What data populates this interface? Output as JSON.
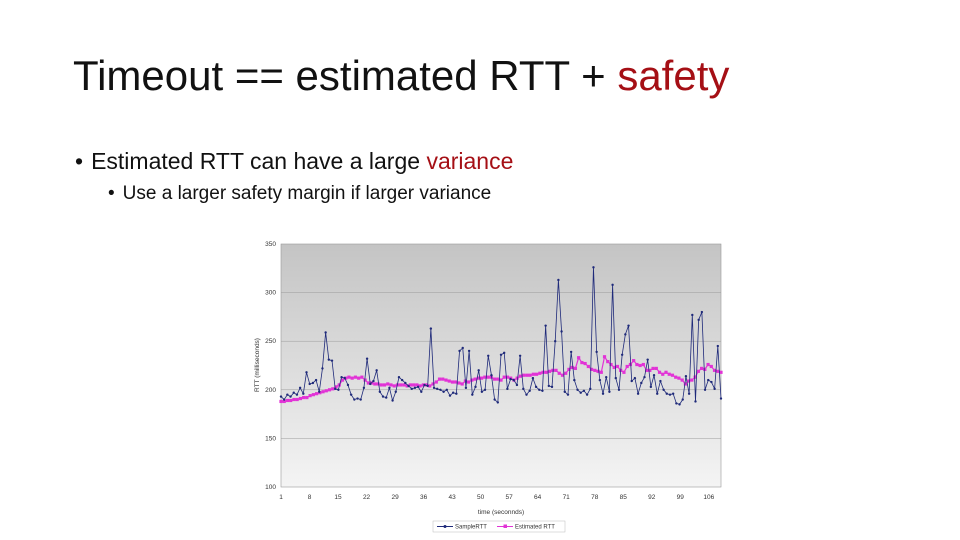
{
  "slide": {
    "title_main": "Timeout == estimated RTT + ",
    "title_accent": "safety",
    "bullet1_main": "Estimated RTT can have a large ",
    "bullet1_accent": "variance",
    "bullet2": "Use a larger safety margin if larger variance",
    "bullet_glyph": "•"
  },
  "colors": {
    "accent": "#a50f15",
    "sample_series": "#1f2a7a",
    "estimated_series": "#e233d6",
    "plot_gradient_top": "#c4c4c4",
    "plot_gradient_bottom": "#f4f4f4"
  },
  "chart_data": {
    "type": "line",
    "xlabel": "time (seconnds)",
    "ylabel": "RTT (milliseconds)",
    "ylim": [
      100,
      350
    ],
    "xlim": [
      1,
      109
    ],
    "yticks": [
      100,
      150,
      200,
      250,
      300,
      350
    ],
    "xticks": [
      1,
      8,
      15,
      22,
      29,
      36,
      43,
      50,
      57,
      64,
      71,
      78,
      85,
      92,
      99,
      106
    ],
    "grid": true,
    "legend_position": "bottom",
    "series": [
      {
        "name": "SampleRTT",
        "values": [
          193,
          190,
          195,
          193,
          197,
          195,
          202,
          196,
          218,
          206,
          207,
          210,
          198,
          222,
          259,
          231,
          230,
          201,
          200,
          213,
          212,
          205,
          195,
          190,
          191,
          190,
          202,
          232,
          206,
          209,
          220,
          198,
          193,
          192,
          202,
          189,
          198,
          213,
          210,
          207,
          204,
          201,
          202,
          203,
          198,
          205,
          204,
          263,
          202,
          201,
          200,
          198,
          200,
          194,
          197,
          196,
          240,
          243,
          202,
          240,
          195,
          203,
          220,
          198,
          200,
          235,
          215,
          190,
          187,
          236,
          238,
          201,
          211,
          210,
          205,
          235,
          201,
          195,
          199,
          212,
          203,
          200,
          199,
          266,
          204,
          203,
          250,
          313,
          260,
          198,
          195,
          239,
          210,
          200,
          197,
          199,
          195,
          201,
          326,
          239,
          210,
          196,
          213,
          198,
          308,
          212,
          200,
          236,
          257,
          266,
          209,
          212,
          196,
          207,
          213,
          231,
          203,
          215,
          196,
          209,
          200,
          196,
          195,
          196,
          186,
          185,
          190,
          214,
          196,
          277,
          188,
          272,
          280,
          200,
          210,
          208,
          201,
          245,
          191
        ]
      },
      {
        "name": "Estimated RTT",
        "values": [
          188,
          188,
          189,
          189,
          190,
          190,
          191,
          192,
          192,
          194,
          195,
          196,
          197,
          198,
          199,
          200,
          201,
          203,
          205,
          210,
          212,
          213,
          212,
          213,
          212,
          213,
          210,
          207,
          207,
          206,
          206,
          205,
          205,
          206,
          205,
          204,
          205,
          205,
          205,
          204,
          205,
          205,
          205,
          204,
          205,
          205,
          204,
          206,
          208,
          211,
          211,
          210,
          209,
          208,
          208,
          207,
          206,
          209,
          208,
          210,
          211,
          212,
          212,
          213,
          213,
          213,
          211,
          211,
          210,
          213,
          213,
          212,
          210,
          212,
          214,
          215,
          215,
          215,
          216,
          216,
          217,
          218,
          218,
          219,
          220,
          220,
          217,
          215,
          217,
          221,
          223,
          222,
          233,
          228,
          227,
          224,
          221,
          220,
          219,
          218,
          234,
          229,
          226,
          223,
          224,
          220,
          218,
          224,
          226,
          230,
          226,
          225,
          226,
          220,
          220,
          222,
          222,
          218,
          216,
          218,
          216,
          215,
          213,
          212,
          210,
          206,
          209,
          210,
          213,
          219,
          222,
          221,
          226,
          224,
          220,
          219,
          218
        ]
      }
    ]
  }
}
